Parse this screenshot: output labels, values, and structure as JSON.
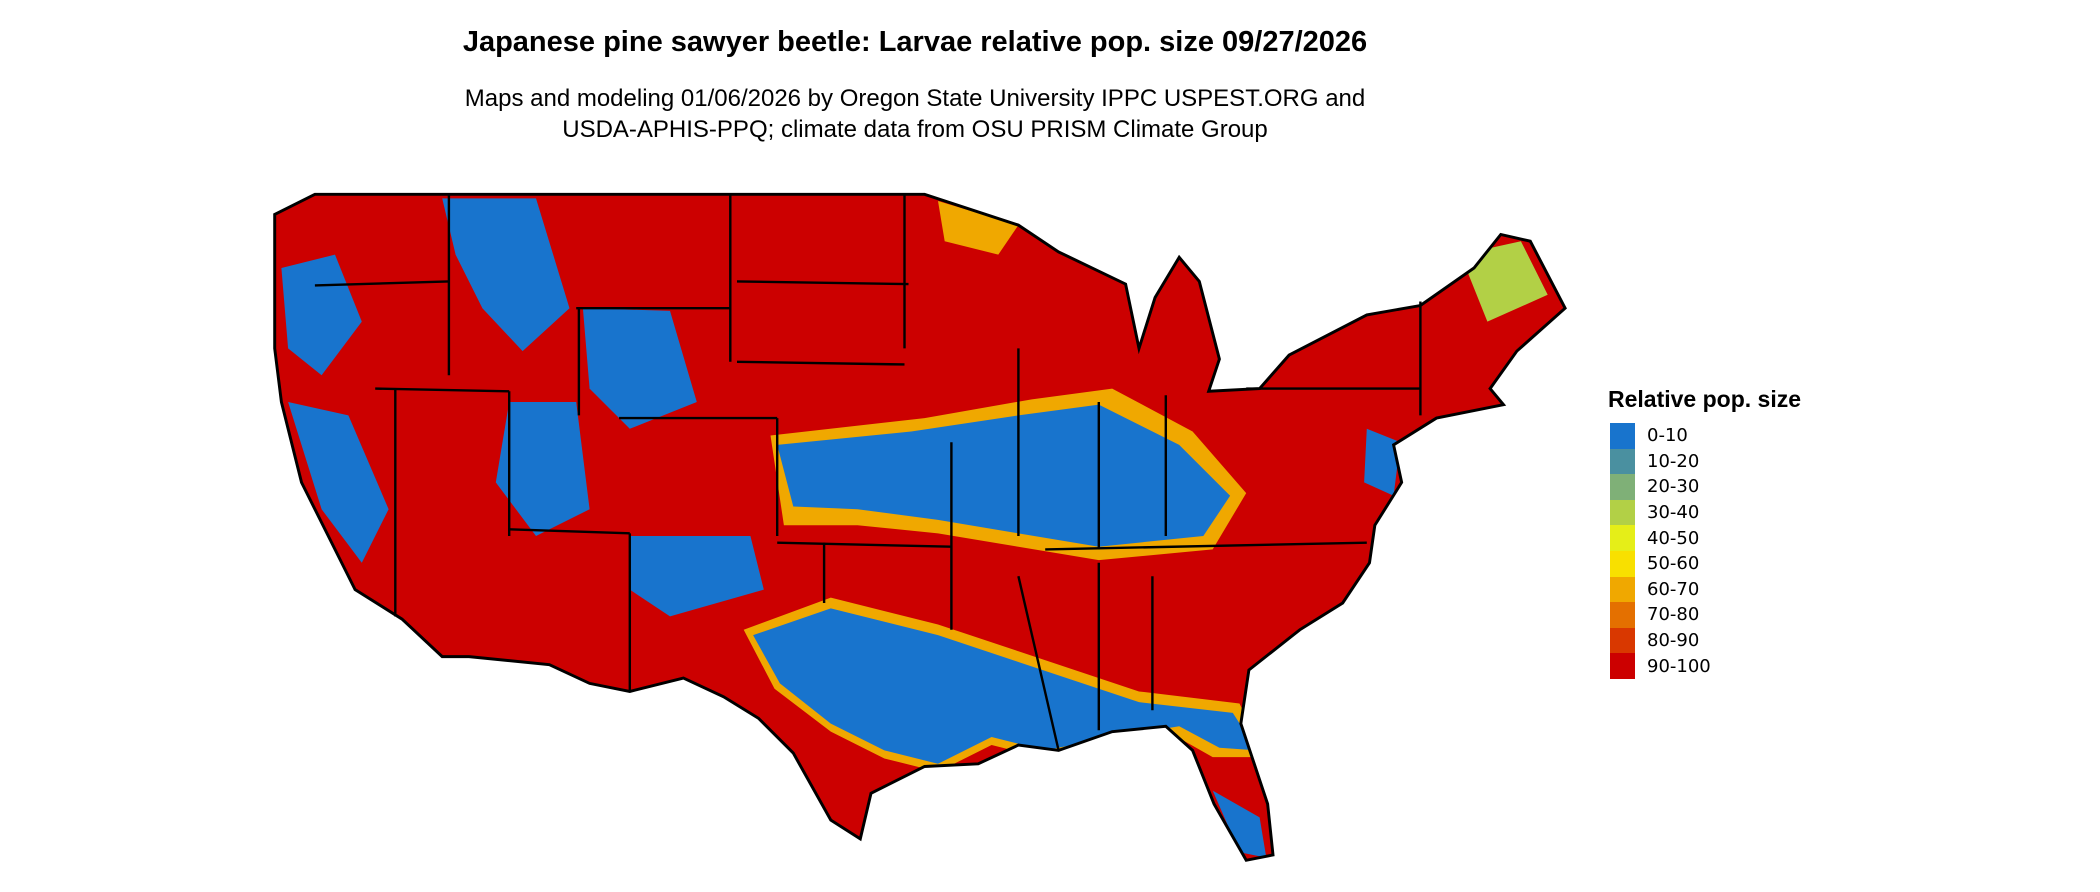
{
  "title": "Japanese pine sawyer beetle: Larvae relative pop. size 09/27/2026",
  "subtitle_lines": [
    "Maps and modeling 01/06/2026 by Oregon State University IPPC USPEST.ORG and",
    "USDA-APHIS-PPQ; climate data from OSU PRISM Climate Group"
  ],
  "legend": {
    "title": "Relative pop. size",
    "items": [
      {
        "label": "0-10",
        "color": "#1874CD"
      },
      {
        "label": "10-20",
        "color": "#4A90A0"
      },
      {
        "label": "20-30",
        "color": "#7FB077"
      },
      {
        "label": "30-40",
        "color": "#B2D046"
      },
      {
        "label": "40-50",
        "color": "#E5EE18"
      },
      {
        "label": "50-60",
        "color": "#F8E000"
      },
      {
        "label": "60-70",
        "color": "#F0A800"
      },
      {
        "label": "70-80",
        "color": "#E47000"
      },
      {
        "label": "80-90",
        "color": "#D93800"
      },
      {
        "label": "90-100",
        "color": "#CC0000"
      }
    ]
  },
  "map": {
    "region": "Contiguous United States",
    "dominant_class": "90-100"
  }
}
